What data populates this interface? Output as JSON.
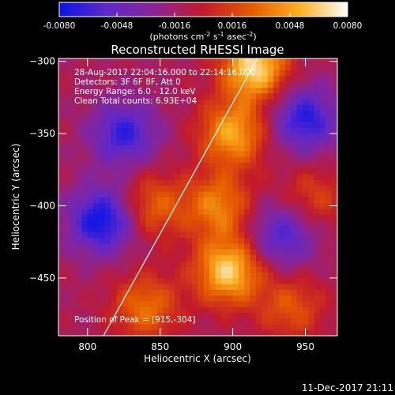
{
  "chart_data": {
    "type": "heatmap",
    "title": "Reconstructed RHESSI Image",
    "xlabel": "Heliocentric X (arcsec)",
    "ylabel": "Heliocentric Y (arcsec)",
    "xlim": [
      780,
      972
    ],
    "ylim": [
      -490,
      -298
    ],
    "x_ticks": [
      800,
      850,
      900,
      950
    ],
    "y_ticks": [
      -300,
      -350,
      -400,
      -450
    ],
    "colorbar": {
      "range": [
        -0.008,
        0.008
      ],
      "ticks": [
        "-0.0080",
        "-0.0048",
        "-0.0016",
        "0.0016",
        "0.0048",
        "0.0080"
      ],
      "label": "(photons cm",
      "label_parts": [
        "(photons cm",
        "-2",
        " s",
        "-1",
        " asec",
        "-2",
        ")"
      ],
      "colors": [
        "#0a14e6",
        "#6028c8",
        "#8a2494",
        "#c21a2a",
        "#e55a00",
        "#fcb020",
        "#ffffff"
      ]
    },
    "annotations": [
      "28-Aug-2017 22:04:16.000 to 22:14:16.000",
      "Detectors: 3F 6F 8F, Att 0",
      "Energy Range: 6.0 - 12.0 keV",
      "Clean     Total counts: 6.93E+04"
    ],
    "peak_label": "Position of Peak = [915,-304]",
    "peak_position": [
      915,
      -304
    ],
    "limb_line": {
      "x": [
        811,
        917
      ],
      "y": [
        -490,
        -298
      ]
    },
    "features": [
      {
        "x": 915,
        "y": -304,
        "intensity": 0.008
      },
      {
        "x": 900,
        "y": -350,
        "intensity": 0.0062
      },
      {
        "x": 897,
        "y": -445,
        "intensity": 0.0075
      },
      {
        "x": 890,
        "y": -400,
        "intensity": 0.005
      },
      {
        "x": 845,
        "y": -400,
        "intensity": 0.004
      },
      {
        "x": 840,
        "y": -470,
        "intensity": 0.0045
      },
      {
        "x": 955,
        "y": -395,
        "intensity": 0.003
      },
      {
        "x": 940,
        "y": -470,
        "intensity": 0.0035
      },
      {
        "x": 810,
        "y": -410,
        "intensity": -0.007
      },
      {
        "x": 825,
        "y": -350,
        "intensity": -0.0055
      },
      {
        "x": 950,
        "y": -340,
        "intensity": -0.006
      },
      {
        "x": 935,
        "y": -420,
        "intensity": -0.005
      }
    ]
  },
  "footer": {
    "timestamp": "11-Dec-2017 21:11"
  }
}
